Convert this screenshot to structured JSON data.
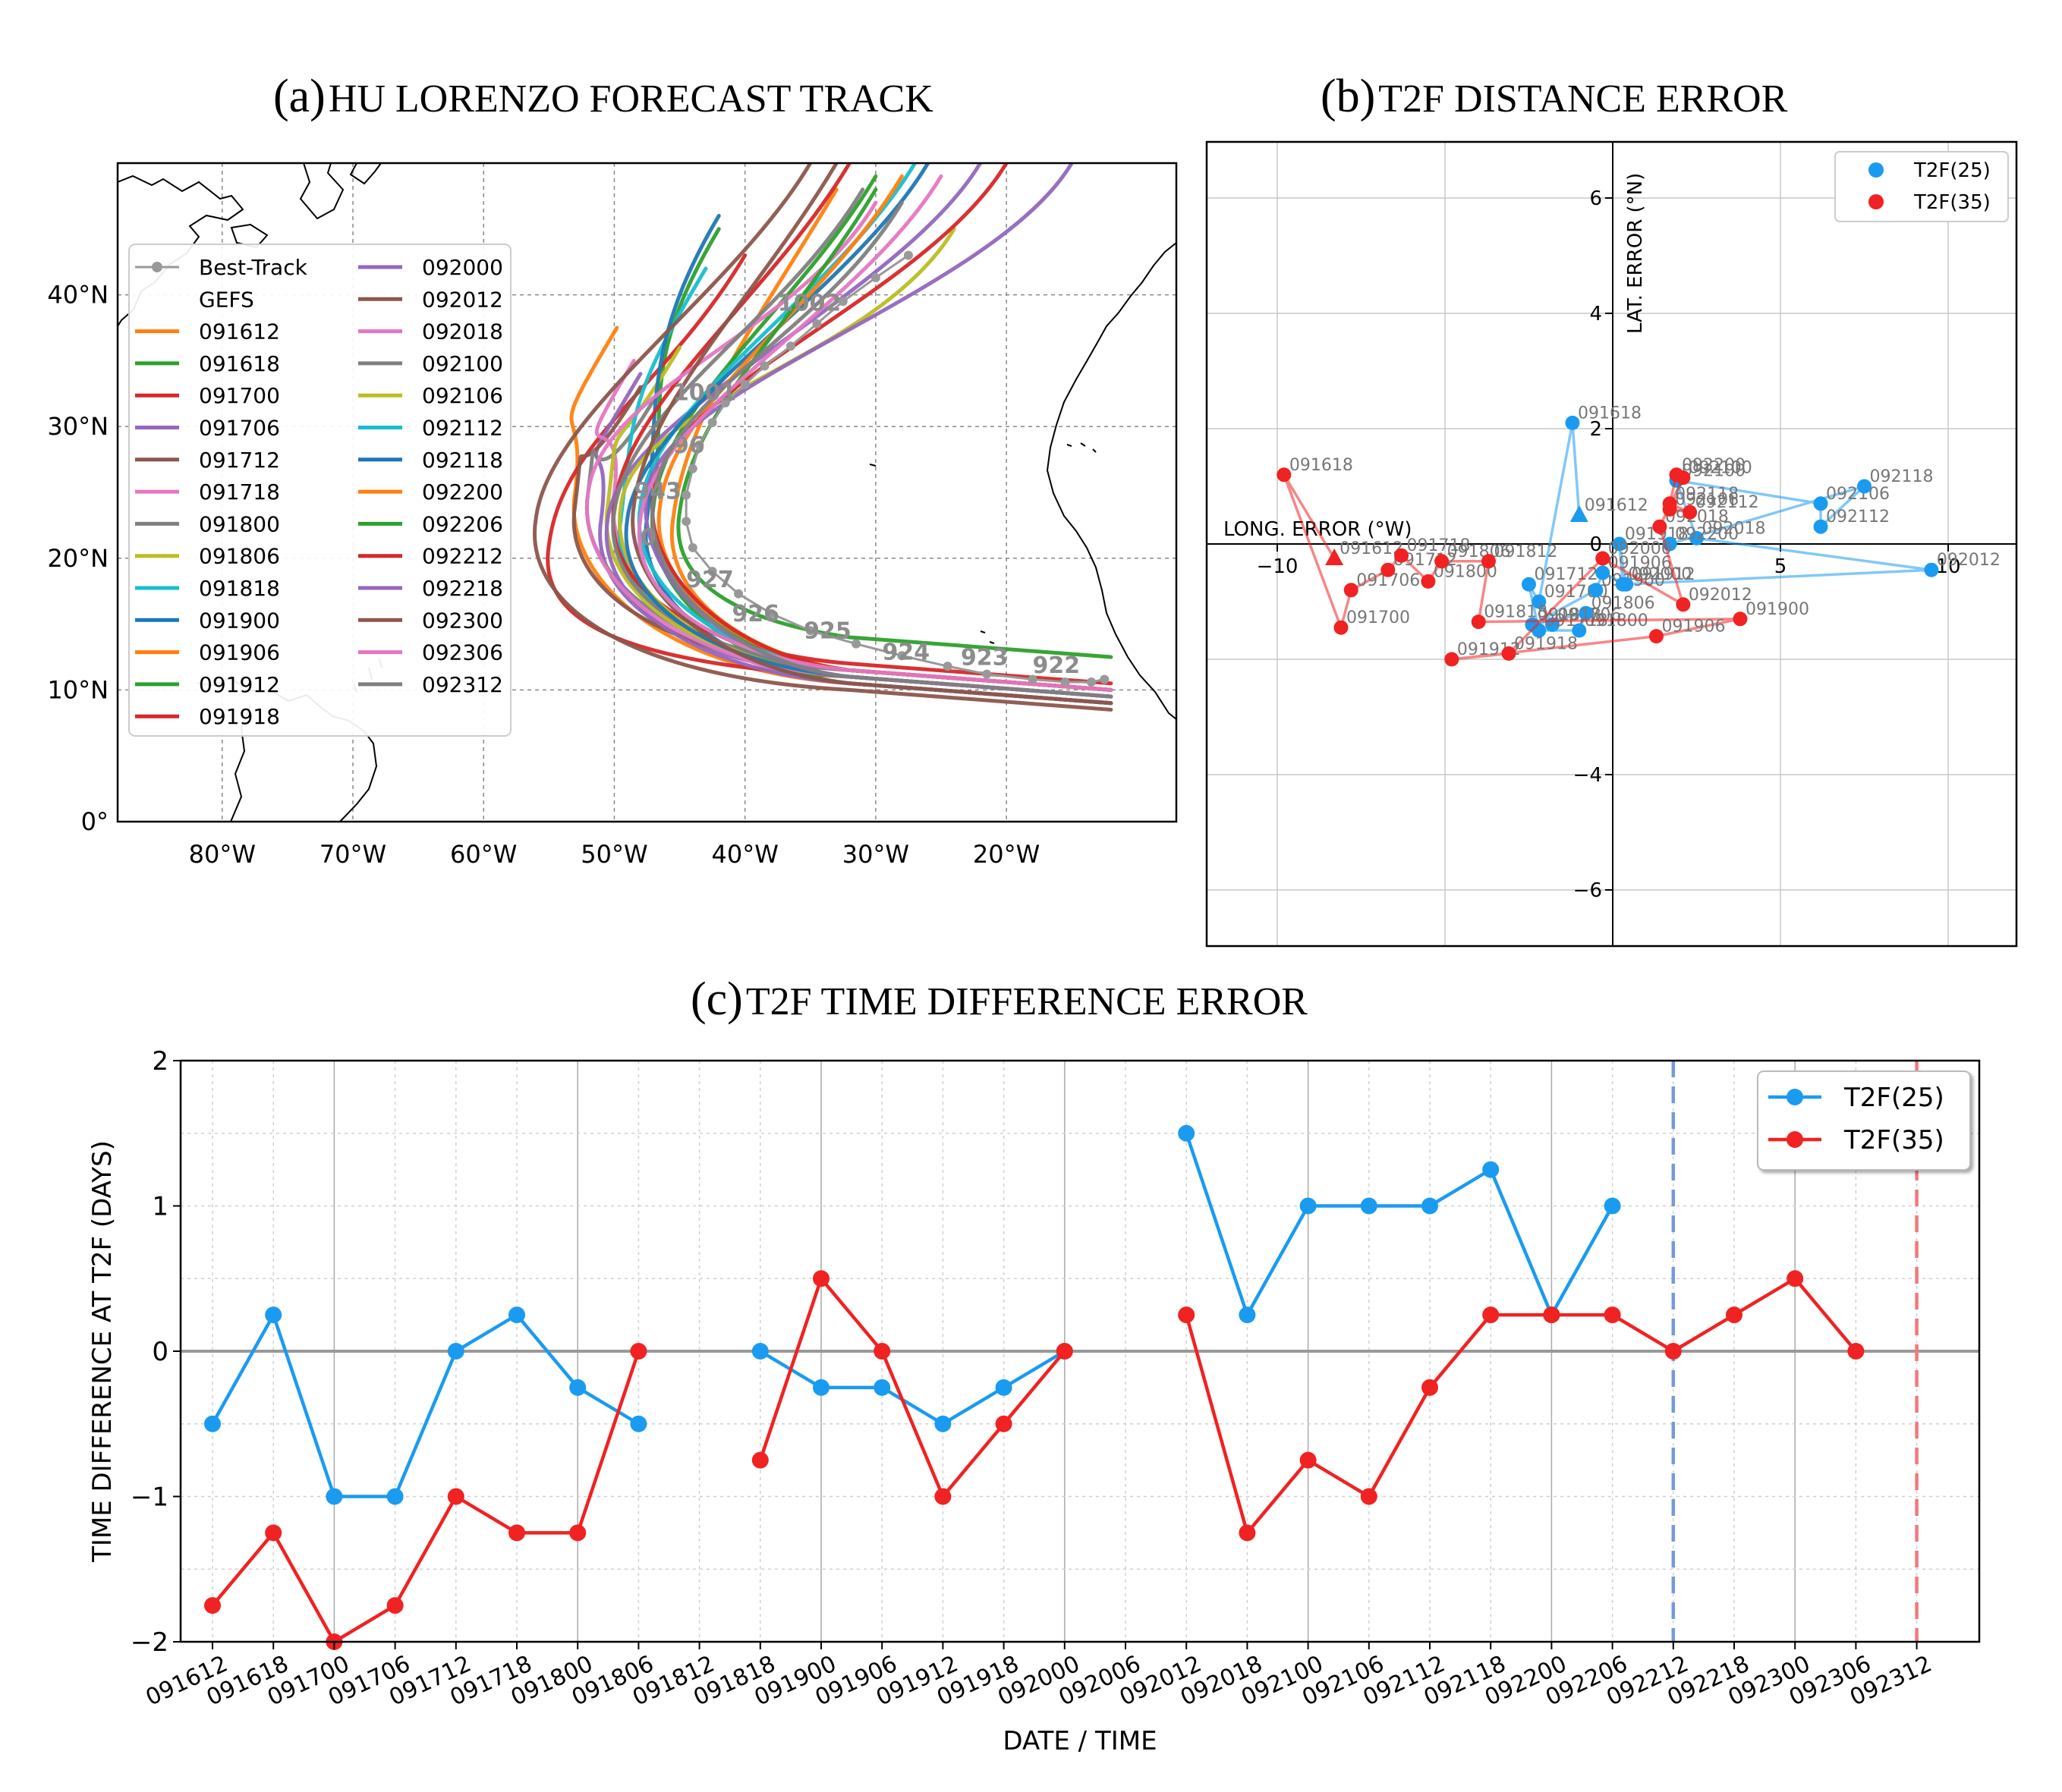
{
  "titles": {
    "a_label": "(a)",
    "a_text": "HU LORENZO FORECAST TRACK",
    "b_label": "(b)",
    "b_text": "T2F DISTANCE ERROR",
    "c_label": "(c)",
    "c_text": "T2F TIME DIFFERENCE ERROR"
  },
  "colors": {
    "blue": "#1a9bf0",
    "red": "#f02222",
    "grid": "#c8c8c8",
    "zero": "#999999"
  },
  "chart_data": [
    {
      "panel": "a",
      "type": "line",
      "title": "HU LORENZO FORECAST TRACK",
      "xlabel": "",
      "ylabel": "",
      "x_ticks": [
        "80°W",
        "70°W",
        "60°W",
        "50°W",
        "40°W",
        "30°W",
        "20°W"
      ],
      "y_ticks": [
        "0°",
        "10°N",
        "20°N",
        "30°N",
        "40°N"
      ],
      "xlim": [
        -88,
        -7
      ],
      "ylim": [
        0,
        50
      ],
      "legend_header_best": "Best-Track",
      "legend_header_gefs": "GEFS",
      "best_track": {
        "lon": [
          -12.5,
          -13.5,
          -15.5,
          -18,
          -21.5,
          -24.5,
          -28,
          -31.5,
          -35,
          -38,
          -40.5,
          -42.5,
          -44,
          -44.5,
          -44.5,
          -44,
          -43.5,
          -42.5,
          -41.5,
          -40,
          -38.5,
          -36.5,
          -34.5,
          -32.5,
          -30,
          -27.5
        ],
        "lat": [
          10.8,
          10.6,
          10.6,
          10.8,
          11.2,
          11.8,
          12.6,
          13.5,
          14.5,
          15.8,
          17.3,
          19.0,
          20.8,
          22.8,
          24.8,
          26.8,
          28.6,
          30.3,
          31.8,
          33.2,
          34.6,
          36.1,
          37.8,
          39.5,
          41.3,
          43.0
        ]
      },
      "pressure_labels": [
        {
          "text": "1002",
          "lon": -37.5,
          "lat": 38.8
        },
        {
          "text": "1001",
          "lon": -45.5,
          "lat": 32.0
        },
        {
          "text": "96",
          "lon": -45.5,
          "lat": 28.0
        },
        {
          "text": "943",
          "lon": -48.5,
          "lat": 24.5
        },
        {
          "text": "0",
          "lon": -48.0,
          "lat": 21.0
        },
        {
          "text": "927",
          "lon": -44.5,
          "lat": 17.8
        },
        {
          "text": "926",
          "lon": -41.0,
          "lat": 15.2
        },
        {
          "text": "925",
          "lon": -35.5,
          "lat": 13.9
        },
        {
          "text": "924",
          "lon": -29.5,
          "lat": 12.3
        },
        {
          "text": "923",
          "lon": -23.5,
          "lat": 11.9
        },
        {
          "text": "922",
          "lon": -18.0,
          "lat": 11.3
        }
      ],
      "series": [
        {
          "name": "091612",
          "color": "#ff7f0e",
          "turn_lon": -53.0,
          "turn_lat": 25.0,
          "end_lon": -49.8,
          "end_lat": 37.5,
          "start_lat": 9.0
        },
        {
          "name": "091618",
          "color": "#2ca02c",
          "turn_lon": -47.0,
          "turn_lat": 24.0,
          "end_lon": -42.0,
          "end_lat": 45.0,
          "start_lat": 10.0
        },
        {
          "name": "091700",
          "color": "#d62728",
          "turn_lon": -55.0,
          "turn_lat": 21.0,
          "end_lon": -40.0,
          "end_lat": 43.0,
          "start_lat": 9.5
        },
        {
          "name": "091706",
          "color": "#9467bd",
          "turn_lon": -51.0,
          "turn_lat": 23.0,
          "end_lon": -48.0,
          "end_lat": 34.0,
          "start_lat": 9.5
        },
        {
          "name": "091712",
          "color": "#8c564b",
          "turn_lon": -53.0,
          "turn_lat": 24.0,
          "end_lon": -48.0,
          "end_lat": 33.0,
          "start_lat": 10.0
        },
        {
          "name": "091718",
          "color": "#e377c2",
          "turn_lon": -50.0,
          "turn_lat": 25.0,
          "end_lon": -48.5,
          "end_lat": 35.0,
          "start_lat": 9.0
        },
        {
          "name": "091800",
          "color": "#7f7f7f",
          "turn_lon": -52.0,
          "turn_lat": 25.0,
          "end_lon": -47.0,
          "end_lat": 32.0,
          "start_lat": 10.0
        },
        {
          "name": "091806",
          "color": "#bcbd22",
          "turn_lon": -50.5,
          "turn_lat": 24.0,
          "end_lon": -45.0,
          "end_lat": 36.0,
          "start_lat": 9.5
        },
        {
          "name": "091818",
          "color": "#17becf",
          "turn_lon": -49.5,
          "turn_lat": 23.0,
          "end_lon": -43.0,
          "end_lat": 42.0,
          "start_lat": 10.0
        },
        {
          "name": "091900",
          "color": "#1f77b4",
          "turn_lon": -47.5,
          "turn_lat": 23.0,
          "end_lon": -42.0,
          "end_lat": 46.0,
          "start_lat": 9.0
        },
        {
          "name": "091906",
          "color": "#ff7f0e",
          "turn_lon": -45.5,
          "turn_lat": 23.0,
          "end_lon": -33.0,
          "end_lat": 48.0,
          "start_lat": 10.0
        },
        {
          "name": "091912",
          "color": "#2ca02c",
          "turn_lon": -47.0,
          "turn_lat": 24.0,
          "end_lon": -30.0,
          "end_lat": 49.0,
          "start_lat": 9.0
        },
        {
          "name": "091918",
          "color": "#d62728",
          "turn_lon": -50.0,
          "turn_lat": 24.0,
          "end_lon": -32.0,
          "end_lat": 50.0,
          "start_lat": 10.5
        },
        {
          "name": "092000",
          "color": "#9467bd",
          "turn_lon": -50.5,
          "turn_lat": 23.0,
          "end_lon": -22.0,
          "end_lat": 50.0,
          "start_lat": 9.0
        },
        {
          "name": "092012",
          "color": "#8c564b",
          "turn_lon": -56.0,
          "turn_lat": 23.0,
          "end_lon": -35.0,
          "end_lat": 50.0,
          "start_lat": 8.5
        },
        {
          "name": "092018",
          "color": "#e377c2",
          "turn_lon": -52.0,
          "turn_lat": 25.0,
          "end_lon": -30.0,
          "end_lat": 47.0,
          "start_lat": 9.5
        },
        {
          "name": "092100",
          "color": "#7f7f7f",
          "turn_lon": -50.0,
          "turn_lat": 23.5,
          "end_lon": -31.0,
          "end_lat": 48.0,
          "start_lat": 10.0
        },
        {
          "name": "092106",
          "color": "#bcbd22",
          "turn_lon": -49.5,
          "turn_lat": 24.0,
          "end_lon": -24.0,
          "end_lat": 45.0,
          "start_lat": 9.5
        },
        {
          "name": "092112",
          "color": "#17becf",
          "turn_lon": -48.0,
          "turn_lat": 24.0,
          "end_lon": -27.0,
          "end_lat": 50.0,
          "start_lat": 10.0
        },
        {
          "name": "092118",
          "color": "#1f77b4",
          "turn_lon": -49.0,
          "turn_lat": 23.0,
          "end_lon": -26.0,
          "end_lat": 50.0,
          "start_lat": 9.5
        },
        {
          "name": "092200",
          "color": "#ff7f0e",
          "turn_lon": -46.5,
          "turn_lat": 24.0,
          "end_lon": -28.0,
          "end_lat": 49.0,
          "start_lat": 10.0
        },
        {
          "name": "092206",
          "color": "#2ca02c",
          "turn_lon": -45.0,
          "turn_lat": 23.5,
          "end_lon": -30.0,
          "end_lat": 48.0,
          "start_lat": 12.5
        },
        {
          "name": "092212",
          "color": "#d62728",
          "turn_lon": -47.0,
          "turn_lat": 25.0,
          "end_lon": -20.0,
          "end_lat": 50.0,
          "start_lat": 10.0
        },
        {
          "name": "092218",
          "color": "#9467bd",
          "turn_lon": -47.5,
          "turn_lat": 25.0,
          "end_lon": -15.0,
          "end_lat": 50.0,
          "start_lat": 9.5
        },
        {
          "name": "092300",
          "color": "#8c564b",
          "turn_lon": -48.5,
          "turn_lat": 24.0,
          "end_lon": -33.0,
          "end_lat": 50.0,
          "start_lat": 9.0
        },
        {
          "name": "092306",
          "color": "#e377c2",
          "turn_lon": -48.0,
          "turn_lat": 23.0,
          "end_lon": -25.0,
          "end_lat": 49.0,
          "start_lat": 10.0
        },
        {
          "name": "092312",
          "color": "#7f7f7f",
          "turn_lon": -47.0,
          "turn_lat": 24.5,
          "end_lon": -28.0,
          "end_lat": 47.0,
          "start_lat": 9.5
        }
      ]
    },
    {
      "panel": "b",
      "type": "scatter",
      "title": "T2F DISTANCE ERROR",
      "xlabel": "LONG. ERROR (°W)",
      "ylabel": "LAT. ERROR (°N)",
      "xlim": [
        -11.5,
        12
      ],
      "ylim": [
        -7,
        7
      ],
      "x_ticks": [
        -10,
        5,
        10
      ],
      "x_tick_labels": [
        "−10",
        "5",
        "10"
      ],
      "y_ticks": [
        6,
        4,
        2,
        0,
        -4,
        -6
      ],
      "y_tick_labels": [
        "6",
        "4",
        "2",
        "0",
        "−4",
        "−6"
      ],
      "legend": [
        "T2F(25)",
        "T2F(35)"
      ],
      "series": [
        {
          "name": "T2F(25)",
          "points": [
            {
              "label": "091612",
              "x": -1.0,
              "y": 0.5,
              "marker": "triangle"
            },
            {
              "label": "091618",
              "x": -1.2,
              "y": 2.1
            },
            {
              "label": "091700",
              "x": -2.2,
              "y": -1.0
            },
            {
              "label": "091706",
              "x": -1.8,
              "y": -1.4
            },
            {
              "label": "091712",
              "x": -2.5,
              "y": -0.7
            },
            {
              "label": "091718",
              "x": -2.2,
              "y": -1.5
            },
            {
              "label": "091800",
              "x": -1.0,
              "y": -1.5
            },
            {
              "label": "091806",
              "x": -0.8,
              "y": -1.2
            },
            {
              "label": "091818",
              "x": -2.4,
              "y": -1.4
            },
            {
              "label": "091900",
              "x": -0.5,
              "y": -0.8
            },
            {
              "label": "091906",
              "x": -0.3,
              "y": -0.5
            },
            {
              "label": "091912",
              "x": 0.4,
              "y": -0.7
            },
            {
              "label": "091918",
              "x": 0.2,
              "y": 0.0
            },
            {
              "label": "092000",
              "x": 0.3,
              "y": -0.7
            },
            {
              "label": "092012",
              "x": 9.5,
              "y": -0.45
            },
            {
              "label": "092018",
              "x": 2.5,
              "y": 0.1
            },
            {
              "label": "092100",
              "x": 1.9,
              "y": 1.1
            },
            {
              "label": "092106",
              "x": 6.2,
              "y": 0.7
            },
            {
              "label": "092112",
              "x": 6.2,
              "y": 0.3
            },
            {
              "label": "092118",
              "x": 7.5,
              "y": 1.0
            },
            {
              "label": "092200",
              "x": 1.7,
              "y": 0.0
            }
          ]
        },
        {
          "name": "T2F(35)",
          "points": [
            {
              "label": "091612",
              "x": -8.3,
              "y": -0.25,
              "marker": "triangle"
            },
            {
              "label": "091618",
              "x": -9.8,
              "y": 1.2
            },
            {
              "label": "091700",
              "x": -8.1,
              "y": -1.45
            },
            {
              "label": "091706",
              "x": -7.8,
              "y": -0.8
            },
            {
              "label": "091712",
              "x": -6.7,
              "y": -0.45
            },
            {
              "label": "091718",
              "x": -6.3,
              "y": -0.2
            },
            {
              "label": "091800",
              "x": -5.5,
              "y": -0.65
            },
            {
              "label": "091806",
              "x": -5.1,
              "y": -0.3
            },
            {
              "label": "091812",
              "x": -3.7,
              "y": -0.3
            },
            {
              "label": "091818",
              "x": -4.0,
              "y": -1.35
            },
            {
              "label": "091900",
              "x": 3.8,
              "y": -1.3
            },
            {
              "label": "091906",
              "x": 1.3,
              "y": -1.6
            },
            {
              "label": "091912",
              "x": -4.8,
              "y": -2.0
            },
            {
              "label": "091918",
              "x": -3.1,
              "y": -1.9
            },
            {
              "label": "092000",
              "x": -0.3,
              "y": -0.25
            },
            {
              "label": "092012",
              "x": 2.1,
              "y": -1.05
            },
            {
              "label": "092018",
              "x": 1.4,
              "y": 0.3
            },
            {
              "label": "092100",
              "x": 2.1,
              "y": 1.15
            },
            {
              "label": "092106",
              "x": 1.7,
              "y": 0.6
            },
            {
              "label": "092112",
              "x": 2.3,
              "y": 0.55
            },
            {
              "label": "092118",
              "x": 1.7,
              "y": 0.7
            },
            {
              "label": "092200",
              "x": 1.9,
              "y": 1.2
            }
          ]
        }
      ]
    },
    {
      "panel": "c",
      "type": "line",
      "title": "T2F TIME DIFFERENCE ERROR",
      "xlabel": "DATE / TIME",
      "ylabel": "TIME DIFFERENCE AT T2F (DAYS)",
      "ylim": [
        -2,
        2
      ],
      "y_ticks": [
        2,
        1,
        0,
        -1,
        -2
      ],
      "y_tick_labels": [
        "2",
        "1",
        "0",
        "−1",
        "−2"
      ],
      "categories": [
        "091612",
        "091618",
        "091700",
        "091706",
        "091712",
        "091718",
        "091800",
        "091806",
        "091812",
        "091818",
        "091900",
        "091906",
        "091912",
        "091918",
        "092000",
        "092006",
        "092012",
        "092018",
        "092100",
        "092106",
        "092112",
        "092118",
        "092200",
        "092206",
        "092212",
        "092218",
        "092300",
        "092306",
        "092312"
      ],
      "legend": [
        "T2F(25)",
        "T2F(35)"
      ],
      "vlines": [
        {
          "category": "092212",
          "series": "T2F(25)"
        },
        {
          "category": "092312",
          "series": "T2F(35)"
        }
      ],
      "series": [
        {
          "name": "T2F(25)",
          "values": [
            -0.5,
            0.25,
            -1.0,
            -1.0,
            0.0,
            0.25,
            -0.25,
            -0.5,
            null,
            0.0,
            -0.25,
            -0.25,
            -0.5,
            -0.25,
            0.0,
            null,
            1.5,
            0.25,
            1.0,
            1.0,
            1.0,
            1.25,
            0.25,
            1.0,
            null,
            null,
            null,
            null,
            null
          ]
        },
        {
          "name": "T2F(35)",
          "values": [
            -1.75,
            -1.25,
            -2.0,
            -1.75,
            -1.0,
            -1.25,
            -1.25,
            0.0,
            null,
            -0.75,
            0.5,
            0.0,
            -1.0,
            -0.5,
            0.0,
            null,
            0.25,
            -1.25,
            -0.75,
            -1.0,
            -0.25,
            0.25,
            0.25,
            0.25,
            0.0,
            0.25,
            0.5,
            0.0,
            null
          ]
        }
      ]
    }
  ]
}
